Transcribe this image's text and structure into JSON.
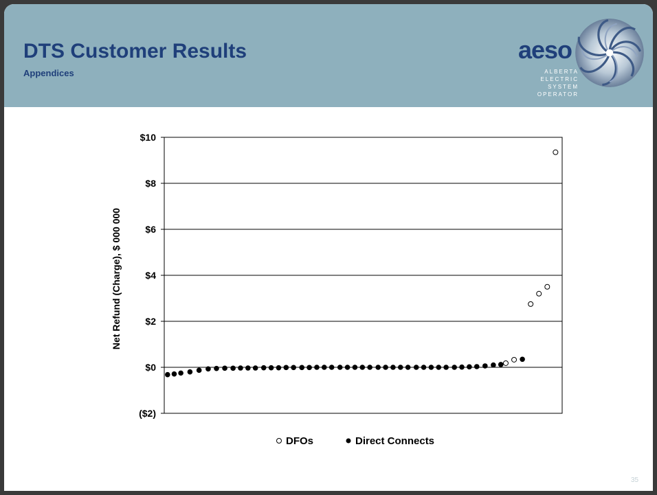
{
  "slide": {
    "title": "DTS Customer Results",
    "subtitle": "Appendices",
    "page_number": "35"
  },
  "logo": {
    "wordmark": "aeso",
    "lines": [
      "ALBERTA",
      "ELECTRIC",
      "SYSTEM",
      "OPERATOR"
    ]
  },
  "colors": {
    "header_bg": "#8eb0bd",
    "title": "#1f3f7a",
    "gridline": "#000000",
    "marker": "#000000"
  },
  "chart_data": {
    "type": "scatter",
    "title": "",
    "xlabel": "",
    "ylabel": "Net Refund (Charge), $ 000 000",
    "ylim": [
      -2,
      10
    ],
    "yticks": [
      -2,
      0,
      2,
      4,
      6,
      8,
      10
    ],
    "ytick_labels": [
      "($2)",
      "$0",
      "$2",
      "$4",
      "$6",
      "$8",
      "$10"
    ],
    "xlim": [
      0,
      48
    ],
    "grid": true,
    "legend_position": "bottom-center",
    "series": [
      {
        "name": "DFOs",
        "marker": "open-circle",
        "x": [
          41.2,
          42.2,
          44.2,
          45.2,
          46.2,
          47.2
        ],
        "y": [
          0.18,
          0.33,
          2.75,
          3.2,
          3.5,
          9.35
        ]
      },
      {
        "name": "Direct Connects",
        "marker": "filled-circle",
        "x": [
          0.4,
          1.2,
          2.0,
          3.1,
          4.2,
          5.3,
          6.3,
          7.3,
          8.3,
          9.2,
          10.1,
          11.0,
          12.0,
          12.9,
          13.8,
          14.7,
          15.6,
          16.6,
          17.5,
          18.4,
          19.3,
          20.2,
          21.2,
          22.1,
          23.0,
          23.9,
          24.8,
          25.8,
          26.7,
          27.6,
          28.5,
          29.4,
          30.4,
          31.3,
          32.2,
          33.1,
          34.0,
          35.0,
          35.9,
          36.8,
          37.7,
          38.7,
          39.7,
          40.6,
          43.2
        ],
        "y": [
          -0.32,
          -0.29,
          -0.25,
          -0.2,
          -0.13,
          -0.07,
          -0.05,
          -0.04,
          -0.04,
          -0.03,
          -0.03,
          -0.03,
          -0.02,
          -0.02,
          -0.02,
          -0.01,
          -0.01,
          -0.01,
          -0.01,
          0.0,
          0.0,
          0.0,
          0.0,
          0.0,
          0.0,
          0.0,
          0.0,
          0.0,
          0.0,
          0.0,
          0.0,
          0.0,
          0.0,
          0.0,
          0.0,
          0.0,
          0.0,
          0.0,
          0.01,
          0.02,
          0.03,
          0.06,
          0.1,
          0.12,
          0.35
        ]
      }
    ]
  }
}
